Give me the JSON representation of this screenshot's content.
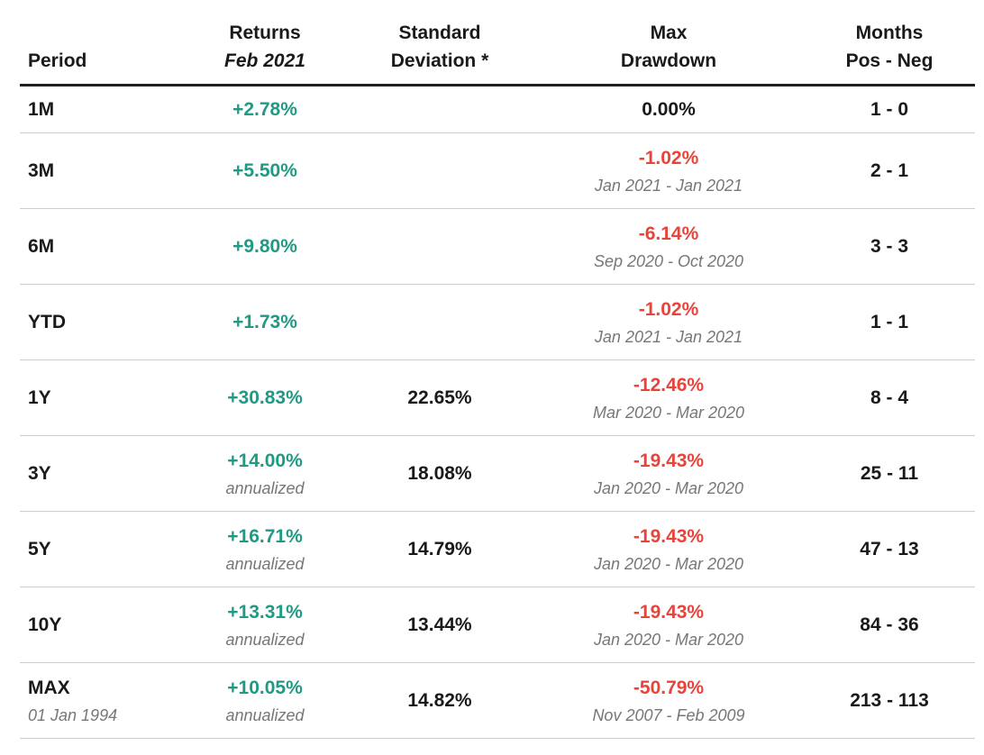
{
  "colors": {
    "positive": "#1f9a84",
    "negative": "#e8443a",
    "text": "#1a1a1a",
    "subtext": "#777777"
  },
  "header": {
    "period": "Period",
    "returns_line1": "Returns",
    "returns_line2": "Feb 2021",
    "std_line1": "Standard",
    "std_line2": "Deviation *",
    "dd_line1": "Max",
    "dd_line2": "Drawdown",
    "months_line1": "Months",
    "months_line2": "Pos - Neg"
  },
  "rows": [
    {
      "period": "1M",
      "period_sub": "",
      "returns": "+2.78%",
      "returns_sub": "",
      "std": "",
      "drawdown": "0.00%",
      "drawdown_sign": "zero",
      "drawdown_range": "",
      "months": "1 - 0"
    },
    {
      "period": "3M",
      "period_sub": "",
      "returns": "+5.50%",
      "returns_sub": "",
      "std": "",
      "drawdown": "-1.02%",
      "drawdown_sign": "neg",
      "drawdown_range": "Jan 2021 - Jan 2021",
      "months": "2 - 1"
    },
    {
      "period": "6M",
      "period_sub": "",
      "returns": "+9.80%",
      "returns_sub": "",
      "std": "",
      "drawdown": "-6.14%",
      "drawdown_sign": "neg",
      "drawdown_range": "Sep 2020 - Oct 2020",
      "months": "3 - 3"
    },
    {
      "period": "YTD",
      "period_sub": "",
      "returns": "+1.73%",
      "returns_sub": "",
      "std": "",
      "drawdown": "-1.02%",
      "drawdown_sign": "neg",
      "drawdown_range": "Jan 2021 - Jan 2021",
      "months": "1 - 1"
    },
    {
      "period": "1Y",
      "period_sub": "",
      "returns": "+30.83%",
      "returns_sub": "",
      "std": "22.65%",
      "drawdown": "-12.46%",
      "drawdown_sign": "neg",
      "drawdown_range": "Mar 2020 - Mar 2020",
      "months": "8 - 4"
    },
    {
      "period": "3Y",
      "period_sub": "",
      "returns": "+14.00%",
      "returns_sub": "annualized",
      "std": "18.08%",
      "drawdown": "-19.43%",
      "drawdown_sign": "neg",
      "drawdown_range": "Jan 2020 - Mar 2020",
      "months": "25 - 11"
    },
    {
      "period": "5Y",
      "period_sub": "",
      "returns": "+16.71%",
      "returns_sub": "annualized",
      "std": "14.79%",
      "drawdown": "-19.43%",
      "drawdown_sign": "neg",
      "drawdown_range": "Jan 2020 - Mar 2020",
      "months": "47 - 13"
    },
    {
      "period": "10Y",
      "period_sub": "",
      "returns": "+13.31%",
      "returns_sub": "annualized",
      "std": "13.44%",
      "drawdown": "-19.43%",
      "drawdown_sign": "neg",
      "drawdown_range": "Jan 2020 - Mar 2020",
      "months": "84 - 36"
    },
    {
      "period": "MAX",
      "period_sub": "01 Jan 1994",
      "returns": "+10.05%",
      "returns_sub": "annualized",
      "std": "14.82%",
      "drawdown": "-50.79%",
      "drawdown_sign": "neg",
      "drawdown_range": "Nov 2007 - Feb 2009",
      "months": "213 - 113"
    }
  ]
}
